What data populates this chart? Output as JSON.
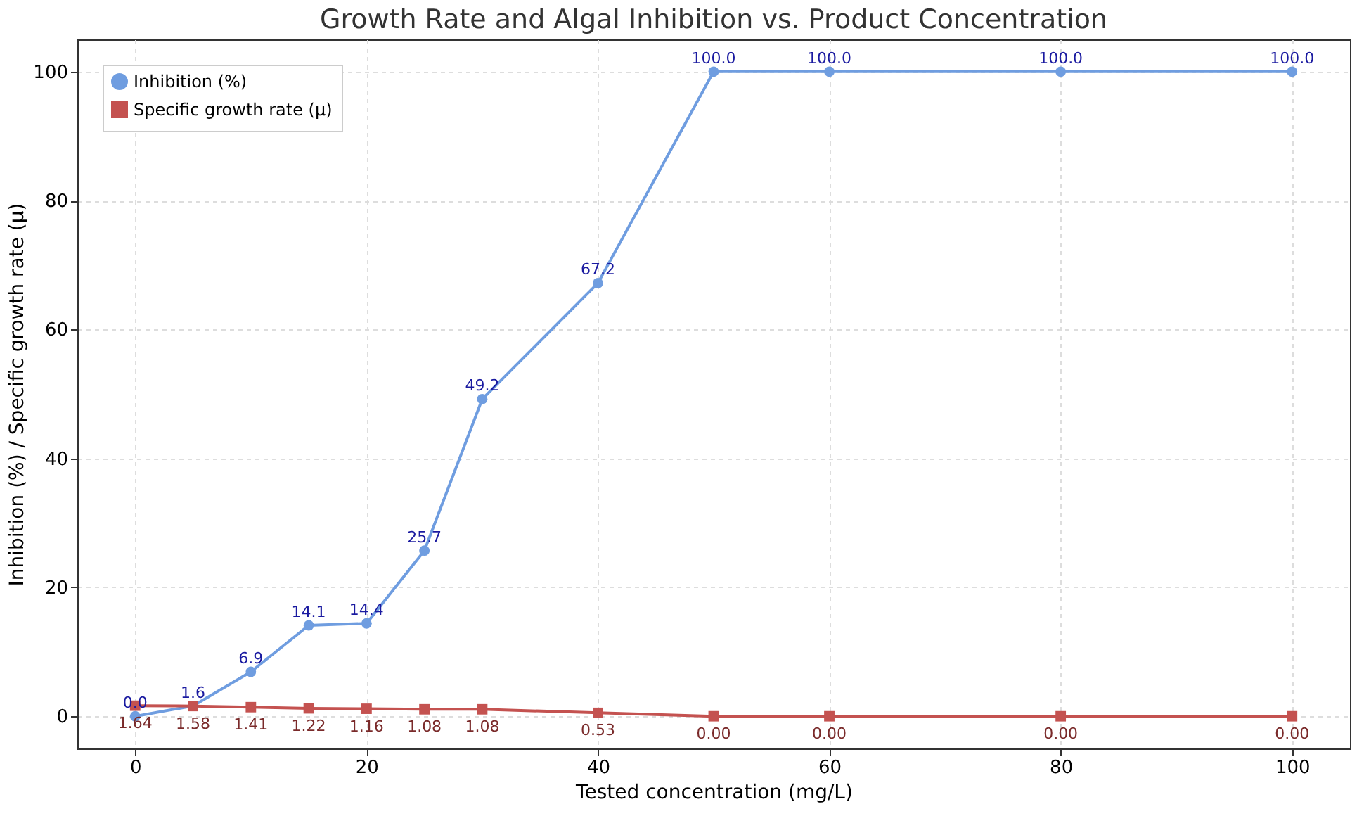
{
  "chart_data": {
    "type": "line",
    "title": "Growth Rate and Algal Inhibition vs. Product Concentration",
    "xlabel": "Tested concentration (mg/L)",
    "ylabel": "Inhibition (%) / Specific growth rate (μ)",
    "x": [
      0,
      5,
      10,
      15,
      20,
      25,
      30,
      40,
      50,
      60,
      80,
      100
    ],
    "series": [
      {
        "name": "Inhibition (%)",
        "color": "#6f9de0",
        "marker": "circle",
        "values": [
          0.0,
          1.6,
          6.9,
          14.1,
          14.4,
          25.7,
          49.2,
          67.2,
          100.0,
          100.0,
          100.0,
          100.0
        ],
        "value_labels": [
          "0.0",
          "1.6",
          "6.9",
          "14.1",
          "14.4",
          "25.7",
          "49.2",
          "67.2",
          "100.0",
          "100.0",
          "100.0",
          "100.0"
        ]
      },
      {
        "name": "Specific growth rate (μ)",
        "color": "#c45250",
        "marker": "square",
        "values": [
          1.64,
          1.58,
          1.41,
          1.22,
          1.16,
          1.08,
          1.08,
          0.53,
          0.0,
          0.0,
          0.0,
          0.0
        ],
        "value_labels": [
          "1.64",
          "1.58",
          "1.41",
          "1.22",
          "1.16",
          "1.08",
          "1.08",
          "0.53",
          "0.00",
          "0.00",
          "0.00",
          "0.00"
        ]
      }
    ],
    "xlim": [
      -5,
      105
    ],
    "xticks": [
      0,
      20,
      40,
      60,
      80,
      100
    ],
    "ylim": [
      -5,
      105
    ],
    "yticks": [
      0,
      20,
      40,
      60,
      80,
      100
    ],
    "grid": true,
    "legend": "top left",
    "line_style": "solid"
  }
}
